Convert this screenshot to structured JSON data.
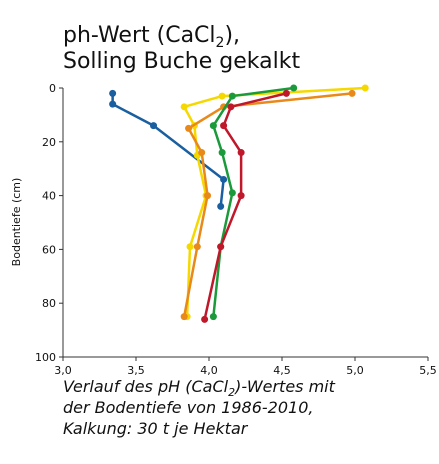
{
  "chart_data": {
    "type": "line",
    "title_parts": [
      "ph-Wert (CaCl",
      "2",
      "),"
    ],
    "subtitle": "Solling Buche gekalkt",
    "ylabel": "Bodentiefe (cm)",
    "caption_parts": [
      "Verlauf des pH (CaCl",
      "2",
      ")-Wertes mit"
    ],
    "caption_lines": [
      "der Bodentiefe von 1986-2010,",
      "Kalkung: 30 t je Hektar"
    ],
    "xlim": [
      3.0,
      5.5
    ],
    "xticks": [
      {
        "value": 3.0,
        "label": "3,0"
      },
      {
        "value": 3.5,
        "label": "3,5"
      },
      {
        "value": 4.0,
        "label": "4,0"
      },
      {
        "value": 4.5,
        "label": "4,5"
      },
      {
        "value": 5.0,
        "label": "5,0"
      },
      {
        "value": 5.5,
        "label": "5,5"
      }
    ],
    "ylim": [
      0,
      100
    ],
    "yticks": [
      0,
      20,
      40,
      60,
      80,
      100
    ],
    "y_reversed": true,
    "series": [
      {
        "color": "#1a5fa0",
        "x": [
          3.34,
          3.34,
          3.62,
          4.1,
          4.08
        ],
        "values": [
          2,
          6,
          14,
          34,
          44
        ]
      },
      {
        "color": "#f5d800",
        "x": [
          5.07,
          4.09,
          3.83,
          3.9,
          3.92,
          3.98,
          3.87,
          3.85
        ],
        "values": [
          0,
          3,
          7,
          14,
          25,
          40,
          59,
          85
        ]
      },
      {
        "color": "#e8891a",
        "x": [
          4.98,
          4.1,
          3.86,
          3.95,
          3.99,
          3.92,
          3.83
        ],
        "values": [
          2,
          7,
          15,
          24,
          40,
          59,
          85
        ]
      },
      {
        "color": "#1a9a3a",
        "x": [
          4.58,
          4.16,
          4.03,
          4.09,
          4.16,
          4.08,
          4.03
        ],
        "values": [
          0,
          3,
          14,
          24,
          39,
          59,
          85
        ]
      },
      {
        "color": "#c0182b",
        "x": [
          4.53,
          4.15,
          4.1,
          4.22,
          4.22,
          4.08,
          3.97
        ],
        "values": [
          2,
          7,
          14,
          24,
          40,
          59,
          86
        ]
      }
    ]
  }
}
